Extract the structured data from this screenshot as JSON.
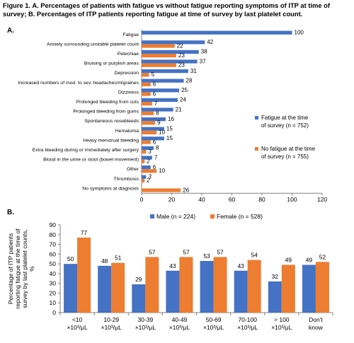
{
  "figure_title": "Figure 1. A. Percentages of patients with fatigue vs without fatigue reporting symptoms of ITP at time of survey; B. Percentages of ITP patients reporting fatigue at time of survey by last platelet count.",
  "panel_a_label": "A.",
  "panel_b_label": "B.",
  "colors": {
    "series1": "#4472C4",
    "series2": "#ED7D31",
    "axis": "#808080",
    "grid": "#d9d9d9"
  },
  "chart_data": [
    {
      "type": "bar",
      "orientation": "horizontal",
      "categories": [
        "Fatigue",
        "Anxiety surrounding unstable platelet count",
        "Petechiae",
        "Bruising or purplish areas",
        "Depression",
        "Increased numbers of mod. to sev. headaches/migraines",
        "Dizziness",
        "Prolonged bleeding from cuts",
        "Prolonged bleeding from gums",
        "Spontaneous nosebleeds",
        "Hematoma",
        "Heavy menstrual bleeding",
        "Extra bleeding during or immediately after surgery",
        "Blood in the urine or stool (bowel movement)",
        "Other",
        "Thrombosis",
        "No symptoms at diagnosis"
      ],
      "series": [
        {
          "name": "Fatigue at the time of survey (n = 752)",
          "values": [
            100,
            42,
            38,
            37,
            31,
            28,
            25,
            24,
            21,
            16,
            15,
            15,
            8,
            7,
            6,
            3,
            null
          ]
        },
        {
          "name": "No fatigue at the time of survey (n = 755)",
          "values": [
            null,
            22,
            23,
            23,
            5,
            6,
            6,
            7,
            8,
            9,
            10,
            6,
            3,
            2,
            10,
            2,
            26
          ]
        }
      ],
      "xlim": [
        0,
        120
      ],
      "xticks": [
        "0",
        "20",
        "40",
        "60",
        "80",
        "100",
        "120"
      ],
      "legend_position": "right"
    },
    {
      "type": "bar",
      "categories": [
        [
          "<10",
          "×10³/μL"
        ],
        [
          "10-29",
          "×10³/μL"
        ],
        [
          "30-39",
          "×10³/μL"
        ],
        [
          "40-49",
          "×10³/μL"
        ],
        [
          "50-69",
          "×10³/μL"
        ],
        [
          "70-100",
          "×10³/μL"
        ],
        [
          "> 100",
          "×10³/μL"
        ],
        [
          "Don't",
          "know"
        ]
      ],
      "series": [
        {
          "name": "Male (n = 224)",
          "values": [
            50,
            48,
            29,
            43,
            53,
            43,
            32,
            49
          ]
        },
        {
          "name": "Female (n = 528)",
          "values": [
            77,
            51,
            57,
            57,
            57,
            54,
            49,
            52
          ]
        }
      ],
      "ylabel": [
        "Percentage of ITP patients",
        "reporting fatigue at the time of",
        "survey by last platelet counts,",
        "%"
      ],
      "ylim": [
        0,
        90
      ],
      "yticks": [
        "0",
        "10",
        "20",
        "30",
        "40",
        "50",
        "60",
        "70",
        "80",
        "90"
      ],
      "legend_position": "top"
    }
  ]
}
